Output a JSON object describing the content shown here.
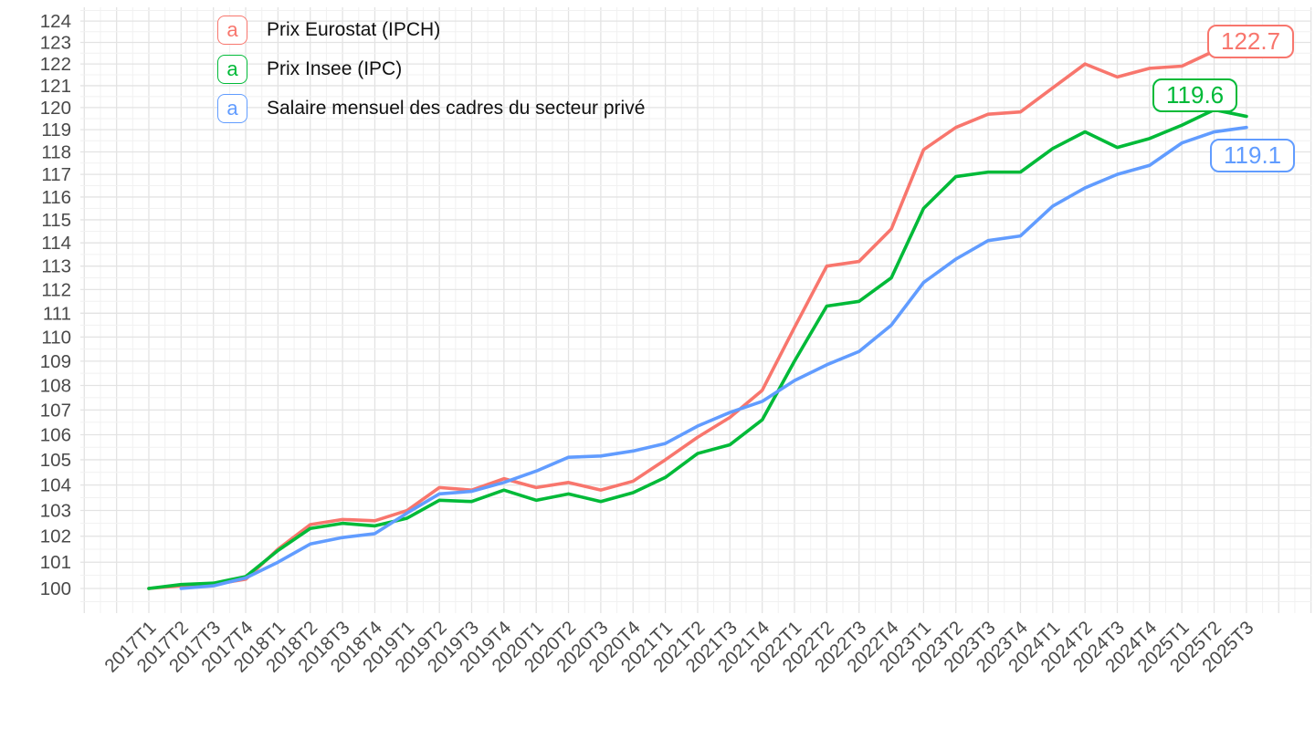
{
  "colors": {
    "eurostat": "#f8766d",
    "insee": "#00ba38",
    "salaire": "#619cff",
    "grid_major": "#e3e3e3",
    "grid_minor": "#f1f1f1",
    "axis_text": "#4a4a4a",
    "legend_text": "#111111",
    "background": "#ffffff"
  },
  "legend": {
    "key_glyph": "a",
    "items": [
      {
        "id": "eurostat",
        "label": "Prix Eurostat (IPCH)"
      },
      {
        "id": "insee",
        "label": "Prix Insee (IPC)"
      },
      {
        "id": "salaire",
        "label": "Salaire mensuel des cadres du secteur privé"
      }
    ]
  },
  "end_labels": [
    {
      "id": "eurostat",
      "text": "122.7"
    },
    {
      "id": "insee",
      "text": "119.6"
    },
    {
      "id": "salaire",
      "text": "119.1"
    }
  ],
  "chart_data": {
    "type": "line",
    "title": "",
    "xlabel": "",
    "ylabel": "",
    "y_scale": "log",
    "grid": true,
    "legend_position": "top-left",
    "y_ticks": [
      100,
      101,
      102,
      103,
      104,
      105,
      106,
      107,
      108,
      109,
      110,
      111,
      112,
      113,
      114,
      115,
      116,
      117,
      118,
      119,
      120,
      121,
      122,
      123,
      124
    ],
    "ylim": [
      99.07,
      124.65
    ],
    "categories": [
      "2017T1",
      "2017T2",
      "2017T3",
      "2017T4",
      "2018T1",
      "2018T2",
      "2018T3",
      "2018T4",
      "2019T1",
      "2019T2",
      "2019T3",
      "2019T4",
      "2020T1",
      "2020T2",
      "2020T3",
      "2020T4",
      "2021T1",
      "2021T2",
      "2021T3",
      "2021T4",
      "2022T1",
      "2022T2",
      "2022T3",
      "2022T4",
      "2023T1",
      "2023T2",
      "2023T3",
      "2023T4",
      "2024T1",
      "2024T2",
      "2024T3",
      "2024T4",
      "2025T1",
      "2025T2",
      "2025T3"
    ],
    "series": [
      {
        "id": "eurostat",
        "name": "Prix Eurostat (IPCH)",
        "end_value": 122.7,
        "values": [
          100,
          100.1,
          100.15,
          100.35,
          101.5,
          102.45,
          102.65,
          102.6,
          103,
          103.9,
          103.8,
          104.25,
          103.9,
          104.1,
          103.8,
          104.15,
          105,
          105.9,
          106.7,
          107.8,
          110.4,
          113,
          113.2,
          114.6,
          118.1,
          119.1,
          119.7,
          119.8,
          120.9,
          122,
          121.4,
          121.8,
          121.9,
          122.6,
          122.7
        ]
      },
      {
        "id": "insee",
        "name": "Prix Insee (IPC)",
        "end_value": 119.6,
        "values": [
          100,
          100.15,
          100.2,
          100.45,
          101.45,
          102.3,
          102.5,
          102.4,
          102.7,
          103.4,
          103.35,
          103.8,
          103.4,
          103.65,
          103.35,
          103.7,
          104.3,
          105.25,
          105.6,
          106.6,
          109,
          111.3,
          111.5,
          112.5,
          115.5,
          116.9,
          117.1,
          117.1,
          118.15,
          118.9,
          118.2,
          118.6,
          119.2,
          119.9,
          119.6
        ]
      },
      {
        "id": "salaire",
        "name": "Salaire mensuel des cadres du secteur privé",
        "end_value": 119.1,
        "values": [
          null,
          100,
          100.1,
          100.4,
          101,
          101.7,
          101.95,
          102.1,
          102.9,
          103.65,
          103.75,
          104.1,
          104.55,
          105.1,
          105.15,
          105.35,
          105.65,
          106.35,
          106.9,
          107.35,
          108.2,
          108.85,
          109.4,
          110.5,
          112.3,
          113.3,
          114.1,
          114.3,
          115.6,
          116.4,
          117,
          117.4,
          118.4,
          118.9,
          119.1
        ]
      }
    ]
  }
}
